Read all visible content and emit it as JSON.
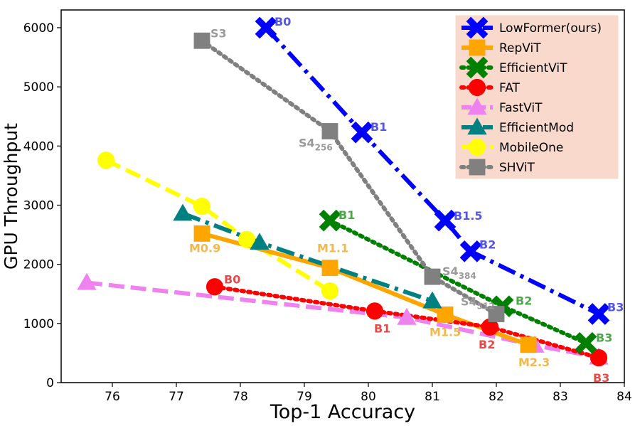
{
  "chart_data": {
    "type": "line",
    "title": "",
    "xlabel": "Top-1 Accuracy",
    "ylabel": "GPU Throughput",
    "xlim": [
      75.2,
      84.0
    ],
    "ylim": [
      0,
      6300
    ],
    "xticks": [
      "76",
      "77",
      "78",
      "79",
      "80",
      "81",
      "82",
      "83",
      "84"
    ],
    "yticks": [
      "0",
      "1000",
      "2000",
      "3000",
      "4000",
      "5000",
      "6000"
    ],
    "legend_placement": "top-right",
    "grid": false,
    "series": [
      {
        "name": "LowFormer(ours)",
        "color": "#0000ff",
        "marker": "x",
        "dash": "dashdot",
        "points": [
          [
            78.4,
            6000
          ],
          [
            79.9,
            4230
          ],
          [
            81.2,
            2740
          ],
          [
            81.6,
            2220
          ],
          [
            83.6,
            1160
          ]
        ],
        "labels": [
          "B0",
          "B1",
          "B1.5",
          "B2",
          "B3"
        ],
        "label_color": "#5555e6"
      },
      {
        "name": "RepViT",
        "color": "#ffa500",
        "marker": "s",
        "dash": "solid",
        "points": [
          [
            77.4,
            2520
          ],
          [
            79.4,
            1940
          ],
          [
            81.2,
            1150
          ],
          [
            82.5,
            640
          ]
        ],
        "labels": [
          "M0.9",
          "M1.1",
          "M1.5",
          "M2.3"
        ],
        "label_color": "#f2b84b"
      },
      {
        "name": "EfficientViT",
        "color": "#008000",
        "marker": "x",
        "dash": "dotted",
        "points": [
          [
            79.4,
            2740
          ],
          [
            82.1,
            1290
          ],
          [
            83.4,
            670
          ]
        ],
        "labels": [
          "B1",
          "B2",
          "B3"
        ],
        "label_color": "#4aa84a"
      },
      {
        "name": "FAT",
        "color": "#ff0000",
        "marker": "o",
        "dash": "dotted",
        "points": [
          [
            77.6,
            1620
          ],
          [
            80.1,
            1210
          ],
          [
            81.9,
            940
          ],
          [
            83.6,
            420
          ]
        ],
        "labels": [
          "B0",
          "B1",
          "B2",
          "B3"
        ],
        "label_color": "#e84a4a"
      },
      {
        "name": "FastViT",
        "color": "#ee82ee",
        "marker": "^",
        "dash": "dashed",
        "points": [
          [
            75.6,
            1690
          ],
          [
            80.6,
            1100
          ],
          [
            82.6,
            630
          ],
          [
            83.6,
            430
          ]
        ],
        "labels": [],
        "label_color": "#ee82ee"
      },
      {
        "name": "EfficientMod",
        "color": "#008080",
        "marker": "^",
        "dash": "dashdot",
        "points": [
          [
            77.1,
            2860
          ],
          [
            78.3,
            2370
          ],
          [
            81.0,
            1380
          ]
        ],
        "labels": [],
        "label_color": "#008080"
      },
      {
        "name": "MobileOne",
        "color": "#ffff00",
        "marker": "o",
        "dash": "dashed",
        "points": [
          [
            75.9,
            3760
          ],
          [
            77.4,
            2980
          ],
          [
            78.1,
            2420
          ],
          [
            79.4,
            1550
          ]
        ],
        "labels": [],
        "label_color": "#e6e600"
      },
      {
        "name": "SHViT",
        "color": "#808080",
        "marker": "s",
        "dash": "dotted",
        "points": [
          [
            77.4,
            5780
          ],
          [
            79.4,
            4250
          ],
          [
            81.0,
            1790
          ],
          [
            82.0,
            1160
          ]
        ],
        "labels": [
          "S3",
          "S4",
          "S4",
          "S4"
        ],
        "sublabels": [
          "",
          "256",
          "384",
          "512"
        ],
        "label_color": "#9a9a9a"
      }
    ]
  }
}
